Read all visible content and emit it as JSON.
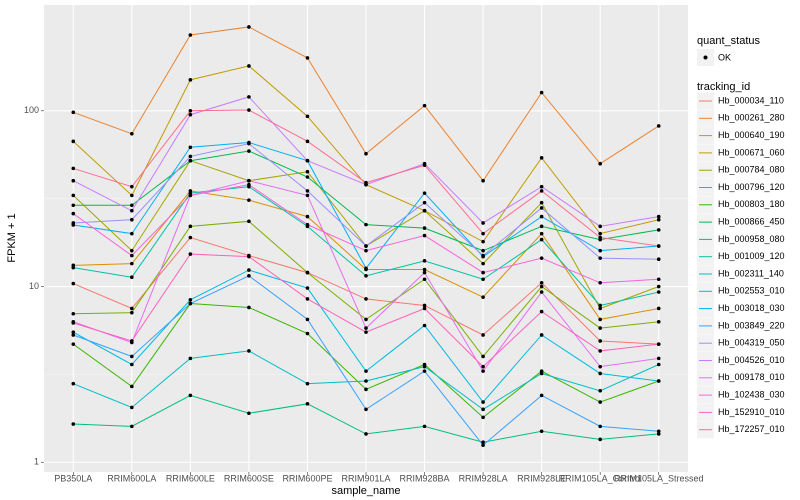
{
  "chart_data": {
    "type": "line",
    "x_label": "sample_name",
    "y_label": "FPKM + 1",
    "log_y": true,
    "grid": true,
    "point_color": "#000000",
    "ylim": [
      0.88,
      400
    ],
    "yticks": [
      1,
      10,
      100
    ],
    "categories": [
      "PB350LA",
      "RRIM600LA",
      "RRIM600LE",
      "RRIM600SE",
      "RRIM600PE",
      "RRIM901LA",
      "RRIM928BA",
      "RRIM928LA",
      "RRIM928LE",
      "RRIM105LA_Control",
      "RRIM105LA_Stressed"
    ],
    "shape_legend": {
      "title": "quant_status",
      "levels": [
        "OK"
      ]
    },
    "legend": {
      "title": "tracking_id",
      "position": "right"
    },
    "series": [
      {
        "name": "Hb_000034_110",
        "color": "#F8766D",
        "values": [
          10.4,
          7.5,
          19,
          15,
          12,
          8.5,
          7.8,
          5.3,
          10.5,
          4.9,
          4.7
        ]
      },
      {
        "name": "Hb_000261_280",
        "color": "#EA8331",
        "values": [
          98,
          74,
          270,
          300,
          200,
          57,
          107,
          40,
          127,
          50,
          82
        ]
      },
      {
        "name": "Hb_000640_190",
        "color": "#D89000",
        "values": [
          13.2,
          13.5,
          35,
          31,
          25,
          12.5,
          12.5,
          8.7,
          20,
          6.5,
          7.5
        ]
      },
      {
        "name": "Hb_000671_060",
        "color": "#C09B00",
        "values": [
          67,
          33,
          150,
          180,
          93,
          38,
          27,
          18,
          54,
          20,
          24
        ]
      },
      {
        "name": "Hb_000784_080",
        "color": "#A3A500",
        "values": [
          33,
          16,
          52,
          40,
          45,
          17,
          27,
          13.5,
          30,
          7.5,
          10
        ]
      },
      {
        "name": "Hb_000796_120",
        "color": "#7CAE00",
        "values": [
          7.0,
          7.1,
          22,
          23.5,
          12,
          6.5,
          11,
          4.0,
          10,
          5.8,
          6.3
        ]
      },
      {
        "name": "Hb_000803_180",
        "color": "#39B600",
        "values": [
          4.7,
          2.7,
          8,
          7.6,
          5.4,
          2.6,
          3.6,
          1.8,
          3.3,
          2.2,
          2.9
        ]
      },
      {
        "name": "Hb_000866_450",
        "color": "#00BB4E",
        "values": [
          29,
          29,
          52,
          59,
          42,
          22.5,
          21.5,
          16,
          22,
          18.5,
          21
        ]
      },
      {
        "name": "Hb_000958_080",
        "color": "#00BF7D",
        "values": [
          1.65,
          1.6,
          2.4,
          1.9,
          2.15,
          1.45,
          1.6,
          1.3,
          1.5,
          1.35,
          1.45
        ]
      },
      {
        "name": "Hb_001009_120",
        "color": "#00C1A3",
        "values": [
          12.8,
          11.3,
          34,
          37,
          22,
          11.5,
          14,
          11,
          18.5,
          7.8,
          9.3
        ]
      },
      {
        "name": "Hb_002311_140",
        "color": "#00BFC4",
        "values": [
          2.8,
          2.05,
          3.9,
          4.3,
          2.8,
          2.9,
          3.5,
          2.0,
          3.2,
          2.55,
          3.6
        ]
      },
      {
        "name": "Hb_002553_010",
        "color": "#00BAE0",
        "values": [
          5.5,
          3.6,
          8.4,
          12.4,
          9.8,
          3.3,
          6.0,
          2.2,
          5.3,
          3.2,
          2.9
        ]
      },
      {
        "name": "Hb_003018_030",
        "color": "#00B0F6",
        "values": [
          22.4,
          20,
          62,
          66,
          52,
          12.7,
          34,
          14.8,
          25,
          16,
          17
        ]
      },
      {
        "name": "Hb_003849_220",
        "color": "#35A2FF",
        "values": [
          5.3,
          4.0,
          8,
          11.5,
          6.5,
          2.0,
          3.3,
          1.25,
          2.4,
          1.6,
          1.5
        ]
      },
      {
        "name": "Hb_004319_050",
        "color": "#9590FF",
        "values": [
          23,
          24,
          55,
          65,
          35,
          17,
          30,
          15,
          28,
          14.5,
          14.3
        ]
      },
      {
        "name": "Hb_004526_010",
        "color": "#C77CFF",
        "values": [
          40,
          27,
          95,
          120,
          52,
          38,
          50,
          23,
          37,
          22,
          25
        ]
      },
      {
        "name": "Hb_009178_010",
        "color": "#E76BF3",
        "values": [
          6.3,
          4.8,
          33,
          40,
          33,
          5.8,
          12,
          3.3,
          9.3,
          3.5,
          3.9
        ]
      },
      {
        "name": "Hb_102438_030",
        "color": "#FA62DB",
        "values": [
          26,
          15,
          33,
          38,
          22.5,
          16,
          19.5,
          12,
          14.5,
          10.5,
          11
        ]
      },
      {
        "name": "Hb_152910_010",
        "color": "#FF62BC",
        "values": [
          6.2,
          4.9,
          15.3,
          14.8,
          8.5,
          5.5,
          7.5,
          3.5,
          7.2,
          4.3,
          4.7
        ]
      },
      {
        "name": "Hb_172257_010",
        "color": "#FF6C91",
        "values": [
          47,
          37,
          100,
          101,
          67,
          39,
          49,
          20,
          35,
          19,
          17
        ]
      }
    ]
  }
}
